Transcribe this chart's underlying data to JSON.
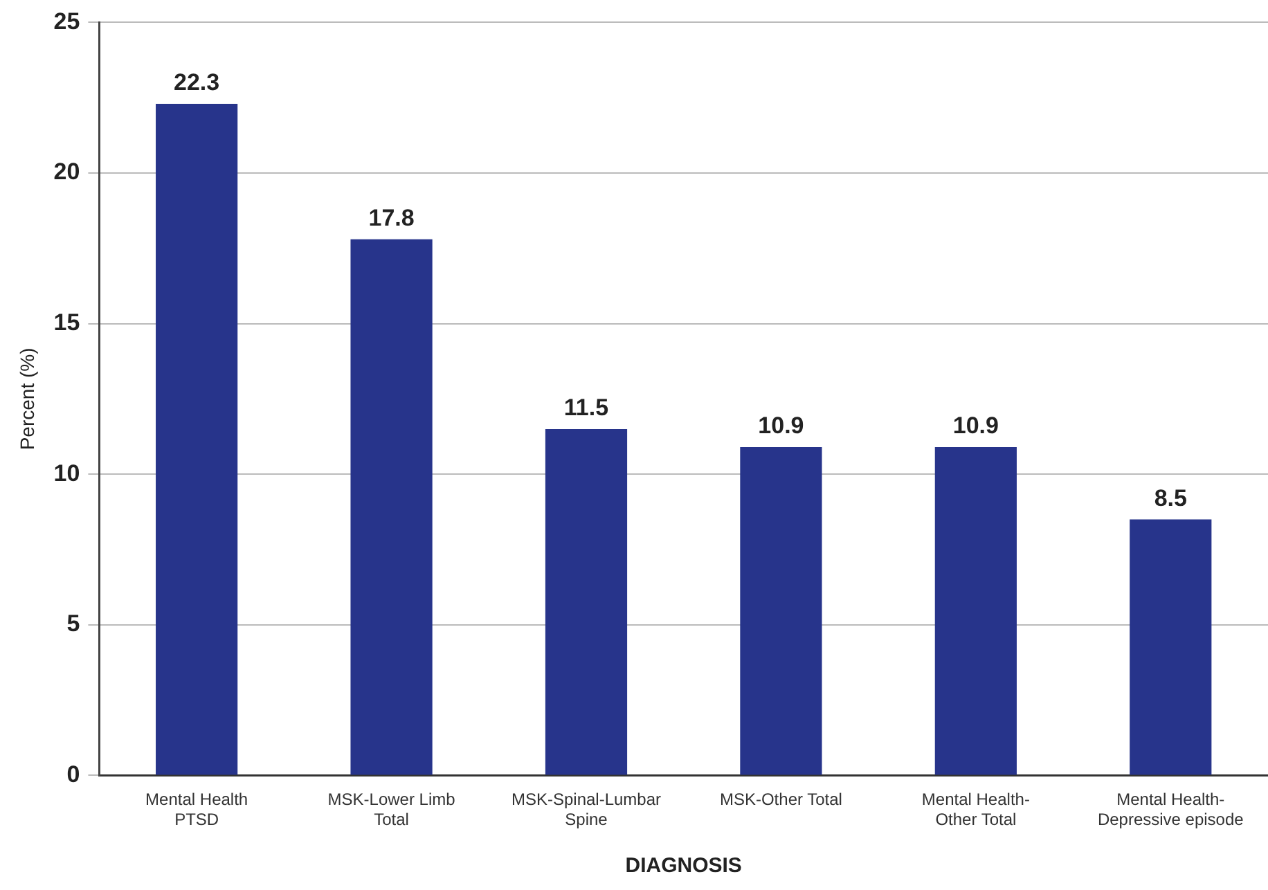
{
  "chart_data": {
    "type": "bar",
    "xlabel": "DIAGNOSIS",
    "ylabel": "Percent (%)",
    "categories": [
      "Mental Health PTSD",
      "MSK-Lower Limb Total",
      "MSK-Spinal-Lumbar Spine",
      "MSK-Other Total",
      "Mental Health-Other Total",
      "Mental Health-Depressive episode"
    ],
    "values": [
      22.3,
      17.8,
      11.5,
      10.9,
      10.9,
      8.5
    ],
    "color": "#27348b",
    "ylim": [
      0,
      25
    ],
    "yticks": [
      0,
      5,
      10,
      15,
      20,
      25
    ],
    "grid": "y",
    "legend": false,
    "data_labels": true
  }
}
